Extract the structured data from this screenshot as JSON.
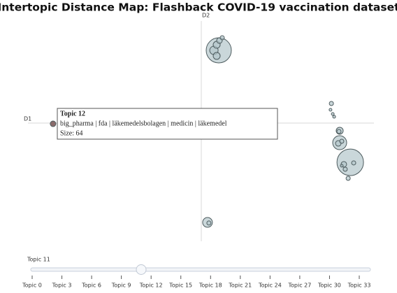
{
  "chart_data": {
    "type": "scatter",
    "title": "Intertopic Distance Map: Flashback COVID-19 vaccination dataset",
    "x_label": "D1",
    "y_label": "D2",
    "xlim": [
      -10,
      10
    ],
    "ylim": [
      -10,
      10
    ],
    "x": [
      1.03,
      1.23,
      1.07,
      0.91,
      0.75,
      0.91,
      7.54,
      7.49,
      7.62,
      7.7,
      8.02,
      7.98,
      8.02,
      7.94,
      8.14,
      8.63,
      8.26,
      8.83,
      8.34,
      8.14,
      8.51,
      -8.55,
      0.38,
      0.46
    ],
    "y": [
      7.12,
      8.36,
      8.08,
      7.67,
      7.12,
      6.58,
      1.92,
      1.3,
      0.89,
      0.62,
      -0.75,
      -0.82,
      -1.92,
      -1.99,
      -1.78,
      -3.84,
      -4.04,
      -3.9,
      -4.52,
      -4.18,
      -5.41,
      -0.07,
      -9.73,
      -9.79
    ],
    "size": [
      1296,
      36,
      64,
      100,
      144,
      100,
      36,
      16,
      16,
      16,
      100,
      36,
      400,
      64,
      36,
      1444,
      64,
      36,
      36,
      16,
      36,
      64,
      196,
      36
    ],
    "color": "#b3c6ca",
    "highlight_index": 21,
    "highlight_color": "#8a6b6b",
    "tooltip": {
      "title": "Topic 12",
      "words": "big_pharma | fda | läkemedelsbolagen | medicin | läkemedel",
      "size_label": "Size: 64"
    },
    "slider": {
      "label": "Topic 11",
      "value": 11,
      "range": [
        0,
        33
      ],
      "ticks": [
        {
          "value": 0,
          "label": "Topic 0"
        },
        {
          "value": 3,
          "label": "Topic 3"
        },
        {
          "value": 6,
          "label": "Topic 6"
        },
        {
          "value": 9,
          "label": "Topic 9"
        },
        {
          "value": 12,
          "label": "Topic 12"
        },
        {
          "value": 15,
          "label": "Topic 15"
        },
        {
          "value": 18,
          "label": "Topic 18"
        },
        {
          "value": 21,
          "label": "Topic 21"
        },
        {
          "value": 24,
          "label": "Topic 24"
        },
        {
          "value": 27,
          "label": "Topic 27"
        },
        {
          "value": 30,
          "label": "Topic 30"
        },
        {
          "value": 33,
          "label": "Topic 33"
        }
      ]
    }
  }
}
